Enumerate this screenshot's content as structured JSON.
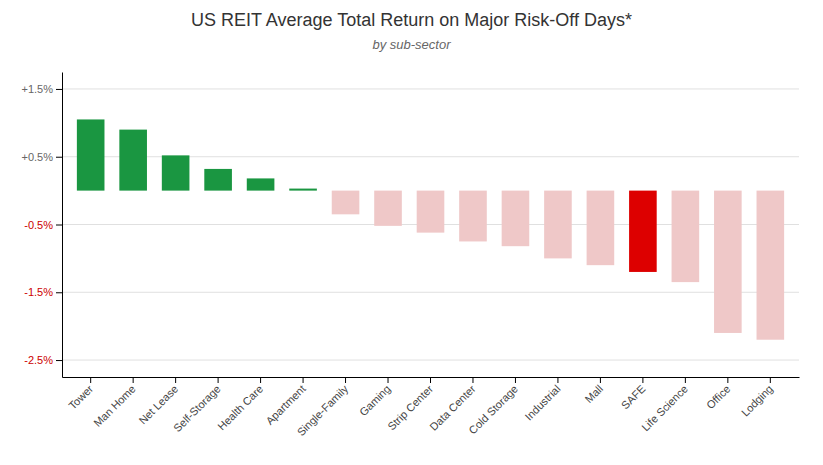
{
  "chart_data": {
    "type": "bar",
    "title": "US REIT Average Total Return on Major Risk-Off Days*",
    "subtitle": "by sub-sector",
    "categories": [
      "Tower",
      "Man Home",
      "Net Lease",
      "Self-Storage",
      "Health Care",
      "Apartment",
      "Single-Family",
      "Gaming",
      "Strip Center",
      "Data Center",
      "Cold Storage",
      "Industrial",
      "Mall",
      "SAFE",
      "Life Science",
      "Office",
      "Lodging"
    ],
    "values": [
      1.05,
      0.9,
      0.52,
      0.32,
      0.18,
      0.03,
      -0.35,
      -0.52,
      -0.62,
      -0.75,
      -0.82,
      -1.0,
      -1.1,
      -1.2,
      -1.35,
      -2.1,
      -2.2
    ],
    "colors": [
      "#1a9641",
      "#1a9641",
      "#1a9641",
      "#1a9641",
      "#1a9641",
      "#1a9641",
      "#efc8c8",
      "#efc8c8",
      "#efc8c8",
      "#efc8c8",
      "#efc8c8",
      "#efc8c8",
      "#efc8c8",
      "#dd0000",
      "#efc8c8",
      "#efc8c8",
      "#efc8c8"
    ],
    "ylim": [
      -2.75,
      1.75
    ],
    "yticks": [
      {
        "value": -2.5,
        "label": "-2.5%"
      },
      {
        "value": -1.5,
        "label": "-1.5%"
      },
      {
        "value": -0.5,
        "label": "-0.5%"
      },
      {
        "value": 0.5,
        "label": "+0.5%"
      },
      {
        "value": 1.5,
        "label": "+1.5%"
      }
    ],
    "grid": true
  }
}
